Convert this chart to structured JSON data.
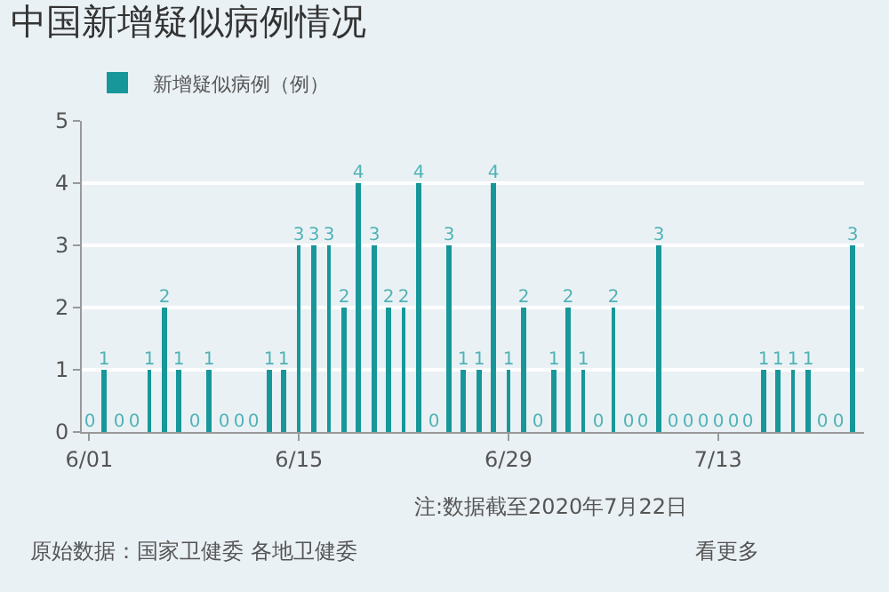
{
  "chart_data": {
    "type": "bar",
    "title": "中国新增疑似病例情况",
    "x": [
      "2020-06-01",
      "2020-06-02",
      "2020-06-03",
      "2020-06-04",
      "2020-06-05",
      "2020-06-06",
      "2020-06-07",
      "2020-06-08",
      "2020-06-09",
      "2020-06-10",
      "2020-06-11",
      "2020-06-12",
      "2020-06-13",
      "2020-06-14",
      "2020-06-15",
      "2020-06-16",
      "2020-06-17",
      "2020-06-18",
      "2020-06-19",
      "2020-06-20",
      "2020-06-21",
      "2020-06-22",
      "2020-06-23",
      "2020-06-24",
      "2020-06-25",
      "2020-06-26",
      "2020-06-27",
      "2020-06-28",
      "2020-06-29",
      "2020-06-30",
      "2020-07-01",
      "2020-07-02",
      "2020-07-03",
      "2020-07-04",
      "2020-07-05",
      "2020-07-06",
      "2020-07-07",
      "2020-07-08",
      "2020-07-09",
      "2020-07-10",
      "2020-07-11",
      "2020-07-12",
      "2020-07-13",
      "2020-07-14",
      "2020-07-15",
      "2020-07-16",
      "2020-07-17",
      "2020-07-18",
      "2020-07-19",
      "2020-07-20",
      "2020-07-21",
      "2020-07-22"
    ],
    "series": [
      {
        "name": "新增疑似病例（例）",
        "color": "#18979a",
        "values": [
          0,
          1,
          0,
          0,
          1,
          2,
          1,
          0,
          1,
          0,
          0,
          0,
          1,
          1,
          3,
          3,
          3,
          2,
          4,
          3,
          2,
          2,
          4,
          0,
          3,
          1,
          1,
          4,
          1,
          2,
          0,
          1,
          2,
          1,
          0,
          2,
          0,
          0,
          3,
          0,
          0,
          0,
          0,
          0,
          0,
          1,
          1,
          1,
          1,
          0,
          0,
          3
        ]
      }
    ],
    "xlim": [
      "2020-05-31T12:00",
      "2020-07-22T18:00"
    ],
    "xticks": [
      {
        "value": "2020-06-01",
        "label": "6/01"
      },
      {
        "value": "2020-06-15",
        "label": "6/15"
      },
      {
        "value": "2020-06-29",
        "label": "6/29"
      },
      {
        "value": "2020-07-13",
        "label": "7/13"
      }
    ],
    "ylim": [
      0,
      5
    ],
    "yticks": [
      0,
      1,
      2,
      3,
      4,
      5
    ],
    "grid": "y",
    "legend": "top left",
    "data_labels": true,
    "annotations": [
      "注:数据截至2020年7月22日",
      "原始数据：国家卫健委 各地卫健委",
      "看更多"
    ]
  }
}
